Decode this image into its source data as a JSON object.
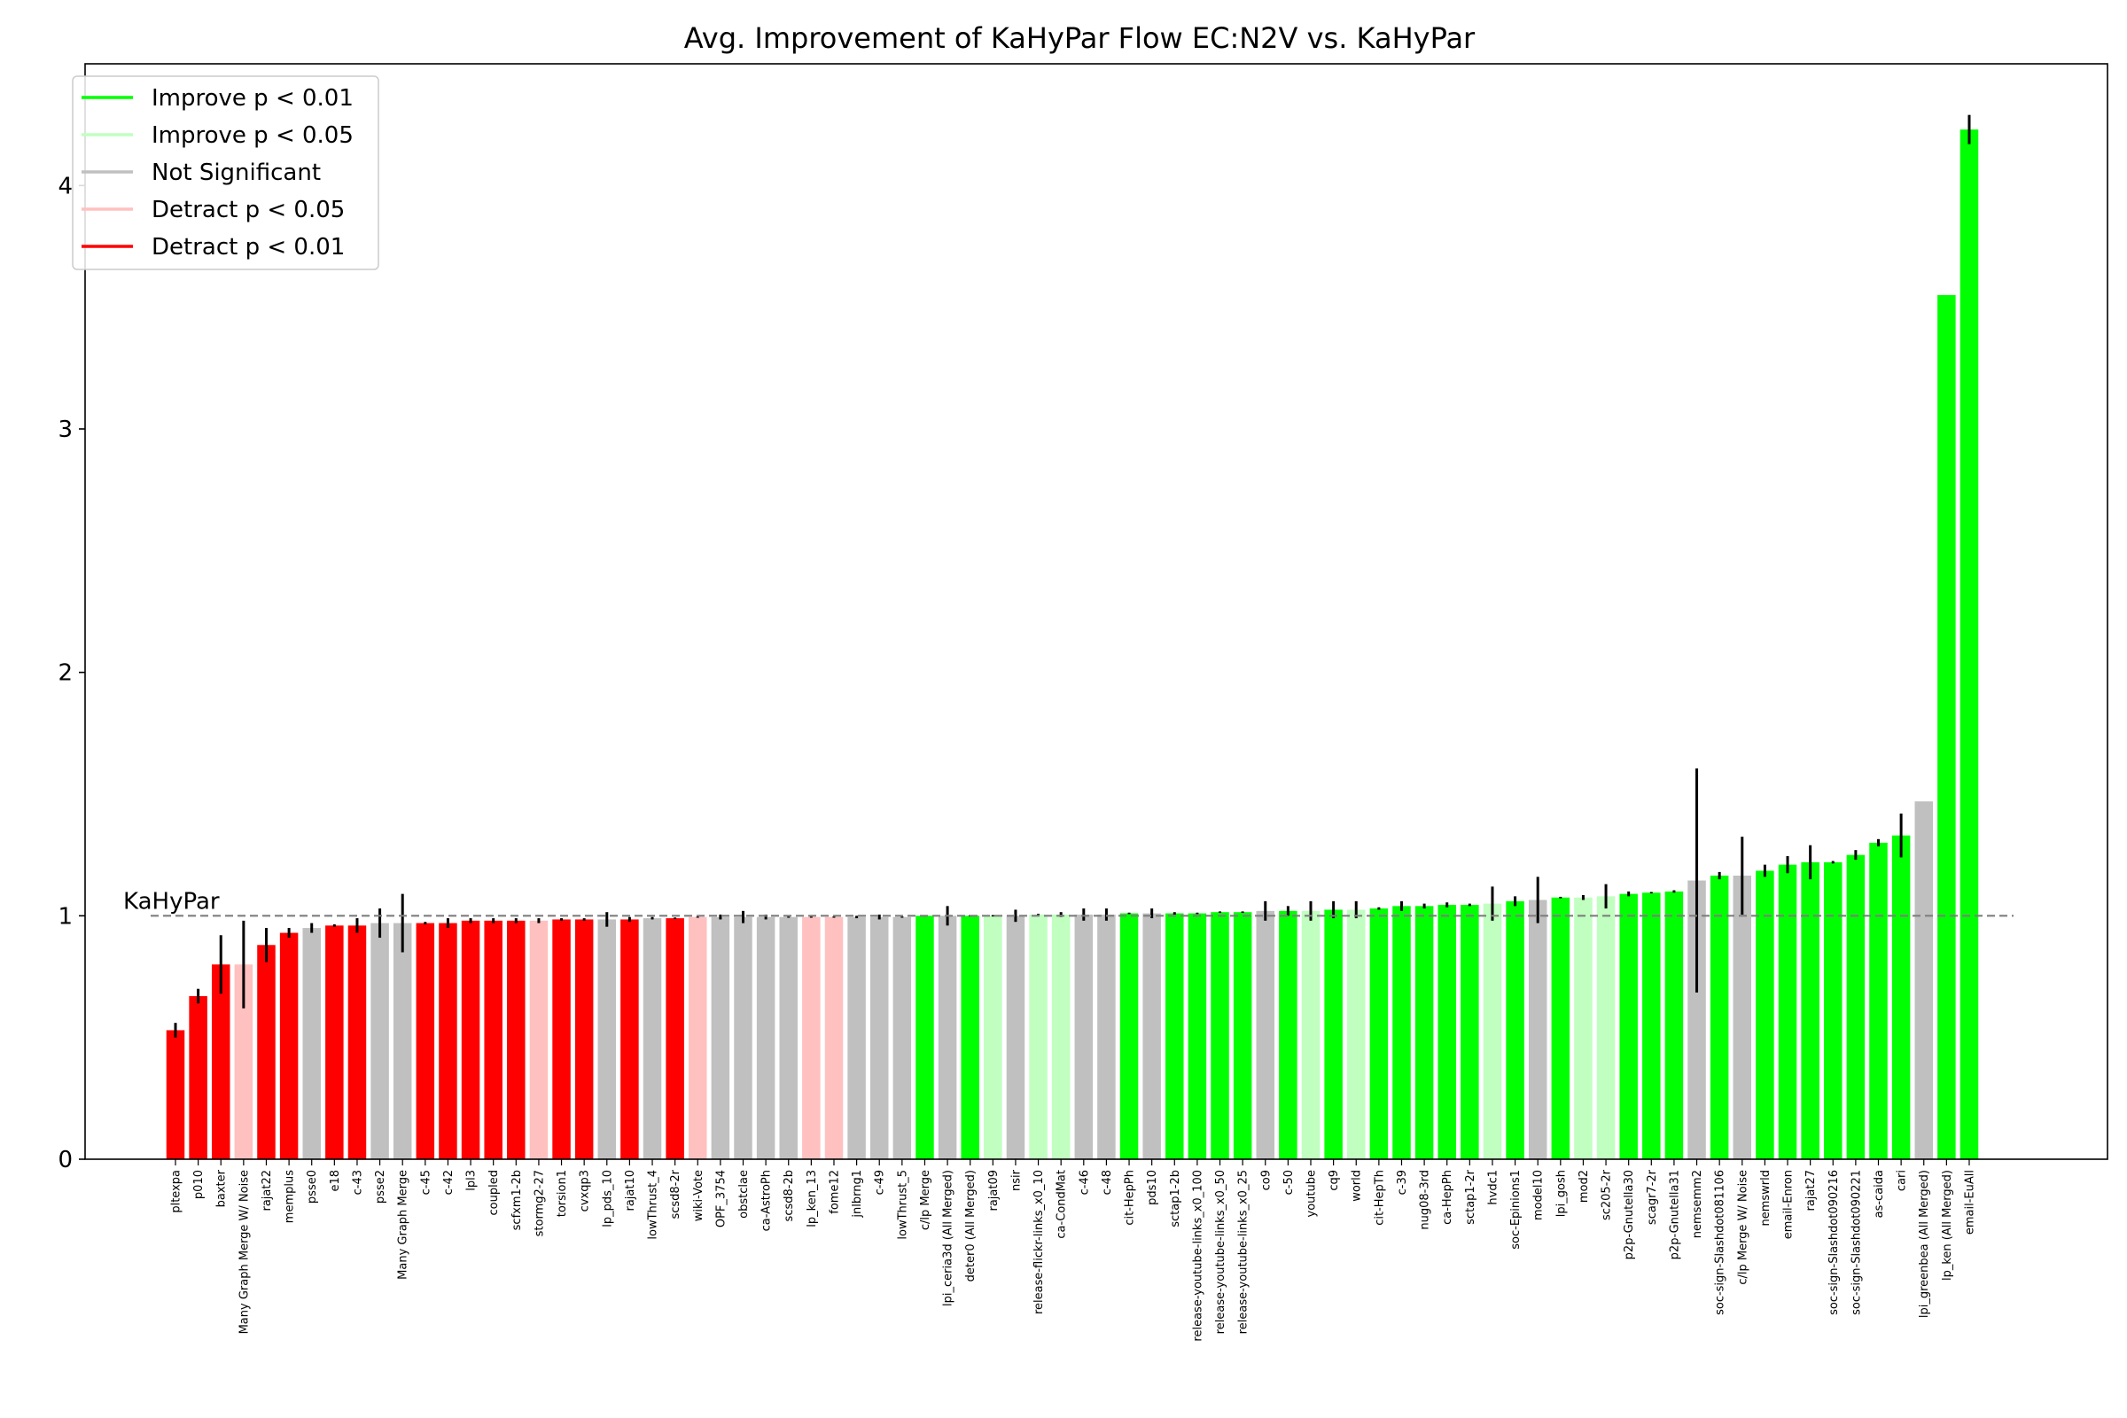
{
  "chart_data": {
    "type": "bar",
    "title": "Avg. Improvement of KaHyPar Flow EC:N2V vs. KaHyPar",
    "xlabel": "",
    "ylabel": "",
    "ylim": [
      0,
      4.5
    ],
    "yticks": [
      "0",
      "1",
      "2",
      "3",
      "4"
    ],
    "baseline": {
      "label": "KaHyPar",
      "value": 1.0
    },
    "legend": {
      "position": "top-left",
      "entries": [
        {
          "key": "imp01",
          "label": "Improve p < 0.01"
        },
        {
          "key": "imp05",
          "label": "Improve p < 0.05"
        },
        {
          "key": "ns",
          "label": "Not Significant"
        },
        {
          "key": "det05",
          "label": "Detract p < 0.05"
        },
        {
          "key": "det01",
          "label": "Detract p < 0.01"
        }
      ]
    },
    "colors": {
      "imp01": "#00ff00",
      "imp05": "#c0ffc0",
      "ns": "#c0c0c0",
      "det05": "#ffc0c0",
      "det01": "#ff0000"
    },
    "bars": [
      {
        "label": "pltexpa",
        "value": 0.53,
        "err": 0.03,
        "sig": "det01"
      },
      {
        "label": "p010",
        "value": 0.67,
        "err": 0.03,
        "sig": "det01"
      },
      {
        "label": "baxter",
        "value": 0.8,
        "err": 0.12,
        "sig": "det01"
      },
      {
        "label": "Many Graph Merge W/ Noise",
        "value": 0.8,
        "err": 0.18,
        "sig": "det05"
      },
      {
        "label": "rajat22",
        "value": 0.88,
        "err": 0.07,
        "sig": "det01"
      },
      {
        "label": "memplus",
        "value": 0.93,
        "err": 0.02,
        "sig": "det01"
      },
      {
        "label": "psse0",
        "value": 0.95,
        "err": 0.02,
        "sig": "ns"
      },
      {
        "label": "e18",
        "value": 0.96,
        "err": 0.005,
        "sig": "det01"
      },
      {
        "label": "c-43",
        "value": 0.96,
        "err": 0.03,
        "sig": "det01"
      },
      {
        "label": "psse2",
        "value": 0.97,
        "err": 0.06,
        "sig": "ns"
      },
      {
        "label": "Many Graph Merge",
        "value": 0.97,
        "err": 0.12,
        "sig": "ns"
      },
      {
        "label": "c-45",
        "value": 0.97,
        "err": 0.005,
        "sig": "det01"
      },
      {
        "label": "c-42",
        "value": 0.97,
        "err": 0.02,
        "sig": "det01"
      },
      {
        "label": "lpl3",
        "value": 0.98,
        "err": 0.01,
        "sig": "det01"
      },
      {
        "label": "coupled",
        "value": 0.98,
        "err": 0.01,
        "sig": "det01"
      },
      {
        "label": "scfxm1-2b",
        "value": 0.98,
        "err": 0.01,
        "sig": "det01"
      },
      {
        "label": "stormg2-27",
        "value": 0.98,
        "err": 0.01,
        "sig": "det05"
      },
      {
        "label": "torsion1",
        "value": 0.985,
        "err": 0.005,
        "sig": "det01"
      },
      {
        "label": "cvxqp3",
        "value": 0.985,
        "err": 0.005,
        "sig": "det01"
      },
      {
        "label": "lp_pds_10",
        "value": 0.985,
        "err": 0.03,
        "sig": "ns"
      },
      {
        "label": "rajat10",
        "value": 0.985,
        "err": 0.01,
        "sig": "det01"
      },
      {
        "label": "lowThrust_4",
        "value": 0.99,
        "err": 0.005,
        "sig": "ns"
      },
      {
        "label": "scsd8-2r",
        "value": 0.99,
        "err": 0.003,
        "sig": "det01"
      },
      {
        "label": "wiki-Vote",
        "value": 0.995,
        "err": 0.003,
        "sig": "det05"
      },
      {
        "label": "OPF_3754",
        "value": 0.995,
        "err": 0.01,
        "sig": "ns"
      },
      {
        "label": "obstclae",
        "value": 0.995,
        "err": 0.025,
        "sig": "ns"
      },
      {
        "label": "ca-AstroPh",
        "value": 0.995,
        "err": 0.01,
        "sig": "ns"
      },
      {
        "label": "scsd8-2b",
        "value": 0.995,
        "err": 0.003,
        "sig": "ns"
      },
      {
        "label": "lp_ken_13",
        "value": 0.995,
        "err": 0.003,
        "sig": "det05"
      },
      {
        "label": "fome12",
        "value": 0.995,
        "err": 0.003,
        "sig": "det05"
      },
      {
        "label": "jnlbrng1",
        "value": 0.995,
        "err": 0.005,
        "sig": "ns"
      },
      {
        "label": "c-49",
        "value": 0.995,
        "err": 0.01,
        "sig": "ns"
      },
      {
        "label": "lowThrust_5",
        "value": 0.995,
        "err": 0.003,
        "sig": "ns"
      },
      {
        "label": "c/lp Merge",
        "value": 1.0,
        "err": 0.003,
        "sig": "imp01"
      },
      {
        "label": "lpi_ceria3d (All Merged)",
        "value": 1.0,
        "err": 0.04,
        "sig": "ns"
      },
      {
        "label": "deter0 (All Merged)",
        "value": 1.0,
        "err": 0.003,
        "sig": "imp01"
      },
      {
        "label": "rajat09",
        "value": 1.0,
        "err": 0.003,
        "sig": "imp05"
      },
      {
        "label": "nsir",
        "value": 1.0,
        "err": 0.025,
        "sig": "ns"
      },
      {
        "label": "release-flickr-links_x0_10",
        "value": 1.005,
        "err": 0.003,
        "sig": "imp05"
      },
      {
        "label": "ca-CondMat",
        "value": 1.005,
        "err": 0.01,
        "sig": "imp05"
      },
      {
        "label": "c-46",
        "value": 1.005,
        "err": 0.025,
        "sig": "ns"
      },
      {
        "label": "c-48",
        "value": 1.005,
        "err": 0.025,
        "sig": "ns"
      },
      {
        "label": "cit-HepPh",
        "value": 1.01,
        "err": 0.003,
        "sig": "imp01"
      },
      {
        "label": "pds10",
        "value": 1.01,
        "err": 0.02,
        "sig": "ns"
      },
      {
        "label": "sctap1-2b",
        "value": 1.01,
        "err": 0.005,
        "sig": "imp01"
      },
      {
        "label": "release-youtube-links_x0_100",
        "value": 1.01,
        "err": 0.003,
        "sig": "imp01"
      },
      {
        "label": "release-youtube-links_x0_50",
        "value": 1.015,
        "err": 0.003,
        "sig": "imp01"
      },
      {
        "label": "release-youtube-links_x0_25",
        "value": 1.015,
        "err": 0.003,
        "sig": "imp01"
      },
      {
        "label": "co9",
        "value": 1.02,
        "err": 0.04,
        "sig": "ns"
      },
      {
        "label": "c-50",
        "value": 1.02,
        "err": 0.02,
        "sig": "imp01"
      },
      {
        "label": "youtube",
        "value": 1.02,
        "err": 0.04,
        "sig": "imp05"
      },
      {
        "label": "cq9",
        "value": 1.025,
        "err": 0.035,
        "sig": "imp01"
      },
      {
        "label": "world",
        "value": 1.025,
        "err": 0.035,
        "sig": "imp05"
      },
      {
        "label": "cit-HepTh",
        "value": 1.03,
        "err": 0.005,
        "sig": "imp01"
      },
      {
        "label": "c-39",
        "value": 1.04,
        "err": 0.02,
        "sig": "imp01"
      },
      {
        "label": "nug08-3rd",
        "value": 1.04,
        "err": 0.01,
        "sig": "imp01"
      },
      {
        "label": "ca-HepPh",
        "value": 1.045,
        "err": 0.01,
        "sig": "imp01"
      },
      {
        "label": "sctap1-2r",
        "value": 1.045,
        "err": 0.005,
        "sig": "imp01"
      },
      {
        "label": "hvdc1",
        "value": 1.05,
        "err": 0.07,
        "sig": "imp05"
      },
      {
        "label": "soc-Epinions1",
        "value": 1.06,
        "err": 0.02,
        "sig": "imp01"
      },
      {
        "label": "model10",
        "value": 1.065,
        "err": 0.095,
        "sig": "ns"
      },
      {
        "label": "lpi_gosh",
        "value": 1.075,
        "err": 0.003,
        "sig": "imp01"
      },
      {
        "label": "mod2",
        "value": 1.075,
        "err": 0.01,
        "sig": "imp05"
      },
      {
        "label": "sc205-2r",
        "value": 1.08,
        "err": 0.05,
        "sig": "imp05"
      },
      {
        "label": "p2p-Gnutella30",
        "value": 1.09,
        "err": 0.01,
        "sig": "imp01"
      },
      {
        "label": "scagr7-2r",
        "value": 1.095,
        "err": 0.003,
        "sig": "imp01"
      },
      {
        "label": "p2p-Gnutella31",
        "value": 1.1,
        "err": 0.005,
        "sig": "imp01"
      },
      {
        "label": "nemsemm2",
        "value": 1.145,
        "err": 0.46,
        "sig": "ns"
      },
      {
        "label": "soc-sign-Slashdot081106",
        "value": 1.165,
        "err": 0.015,
        "sig": "imp01"
      },
      {
        "label": "c/lp Merge W/ Noise",
        "value": 1.165,
        "err": 0.16,
        "sig": "ns"
      },
      {
        "label": "nemswrld",
        "value": 1.185,
        "err": 0.025,
        "sig": "imp01"
      },
      {
        "label": "email-Enron",
        "value": 1.21,
        "err": 0.035,
        "sig": "imp01"
      },
      {
        "label": "rajat27",
        "value": 1.22,
        "err": 0.07,
        "sig": "imp01"
      },
      {
        "label": "soc-sign-Slashdot090216",
        "value": 1.22,
        "err": 0.005,
        "sig": "imp01"
      },
      {
        "label": "soc-sign-Slashdot090221",
        "value": 1.25,
        "err": 0.02,
        "sig": "imp01"
      },
      {
        "label": "as-caida",
        "value": 1.3,
        "err": 0.015,
        "sig": "imp01"
      },
      {
        "label": "cari",
        "value": 1.33,
        "err": 0.09,
        "sig": "imp01"
      },
      {
        "label": "lpi_greenbea (All Merged)",
        "value": 1.47,
        "err": 0,
        "sig": "ns"
      },
      {
        "label": "lp_ken (All Merged)",
        "value": 3.55,
        "err": 0,
        "sig": "imp01"
      },
      {
        "label": "email-EuAll",
        "value": 4.23,
        "err": 0.06,
        "sig": "imp01"
      }
    ]
  }
}
